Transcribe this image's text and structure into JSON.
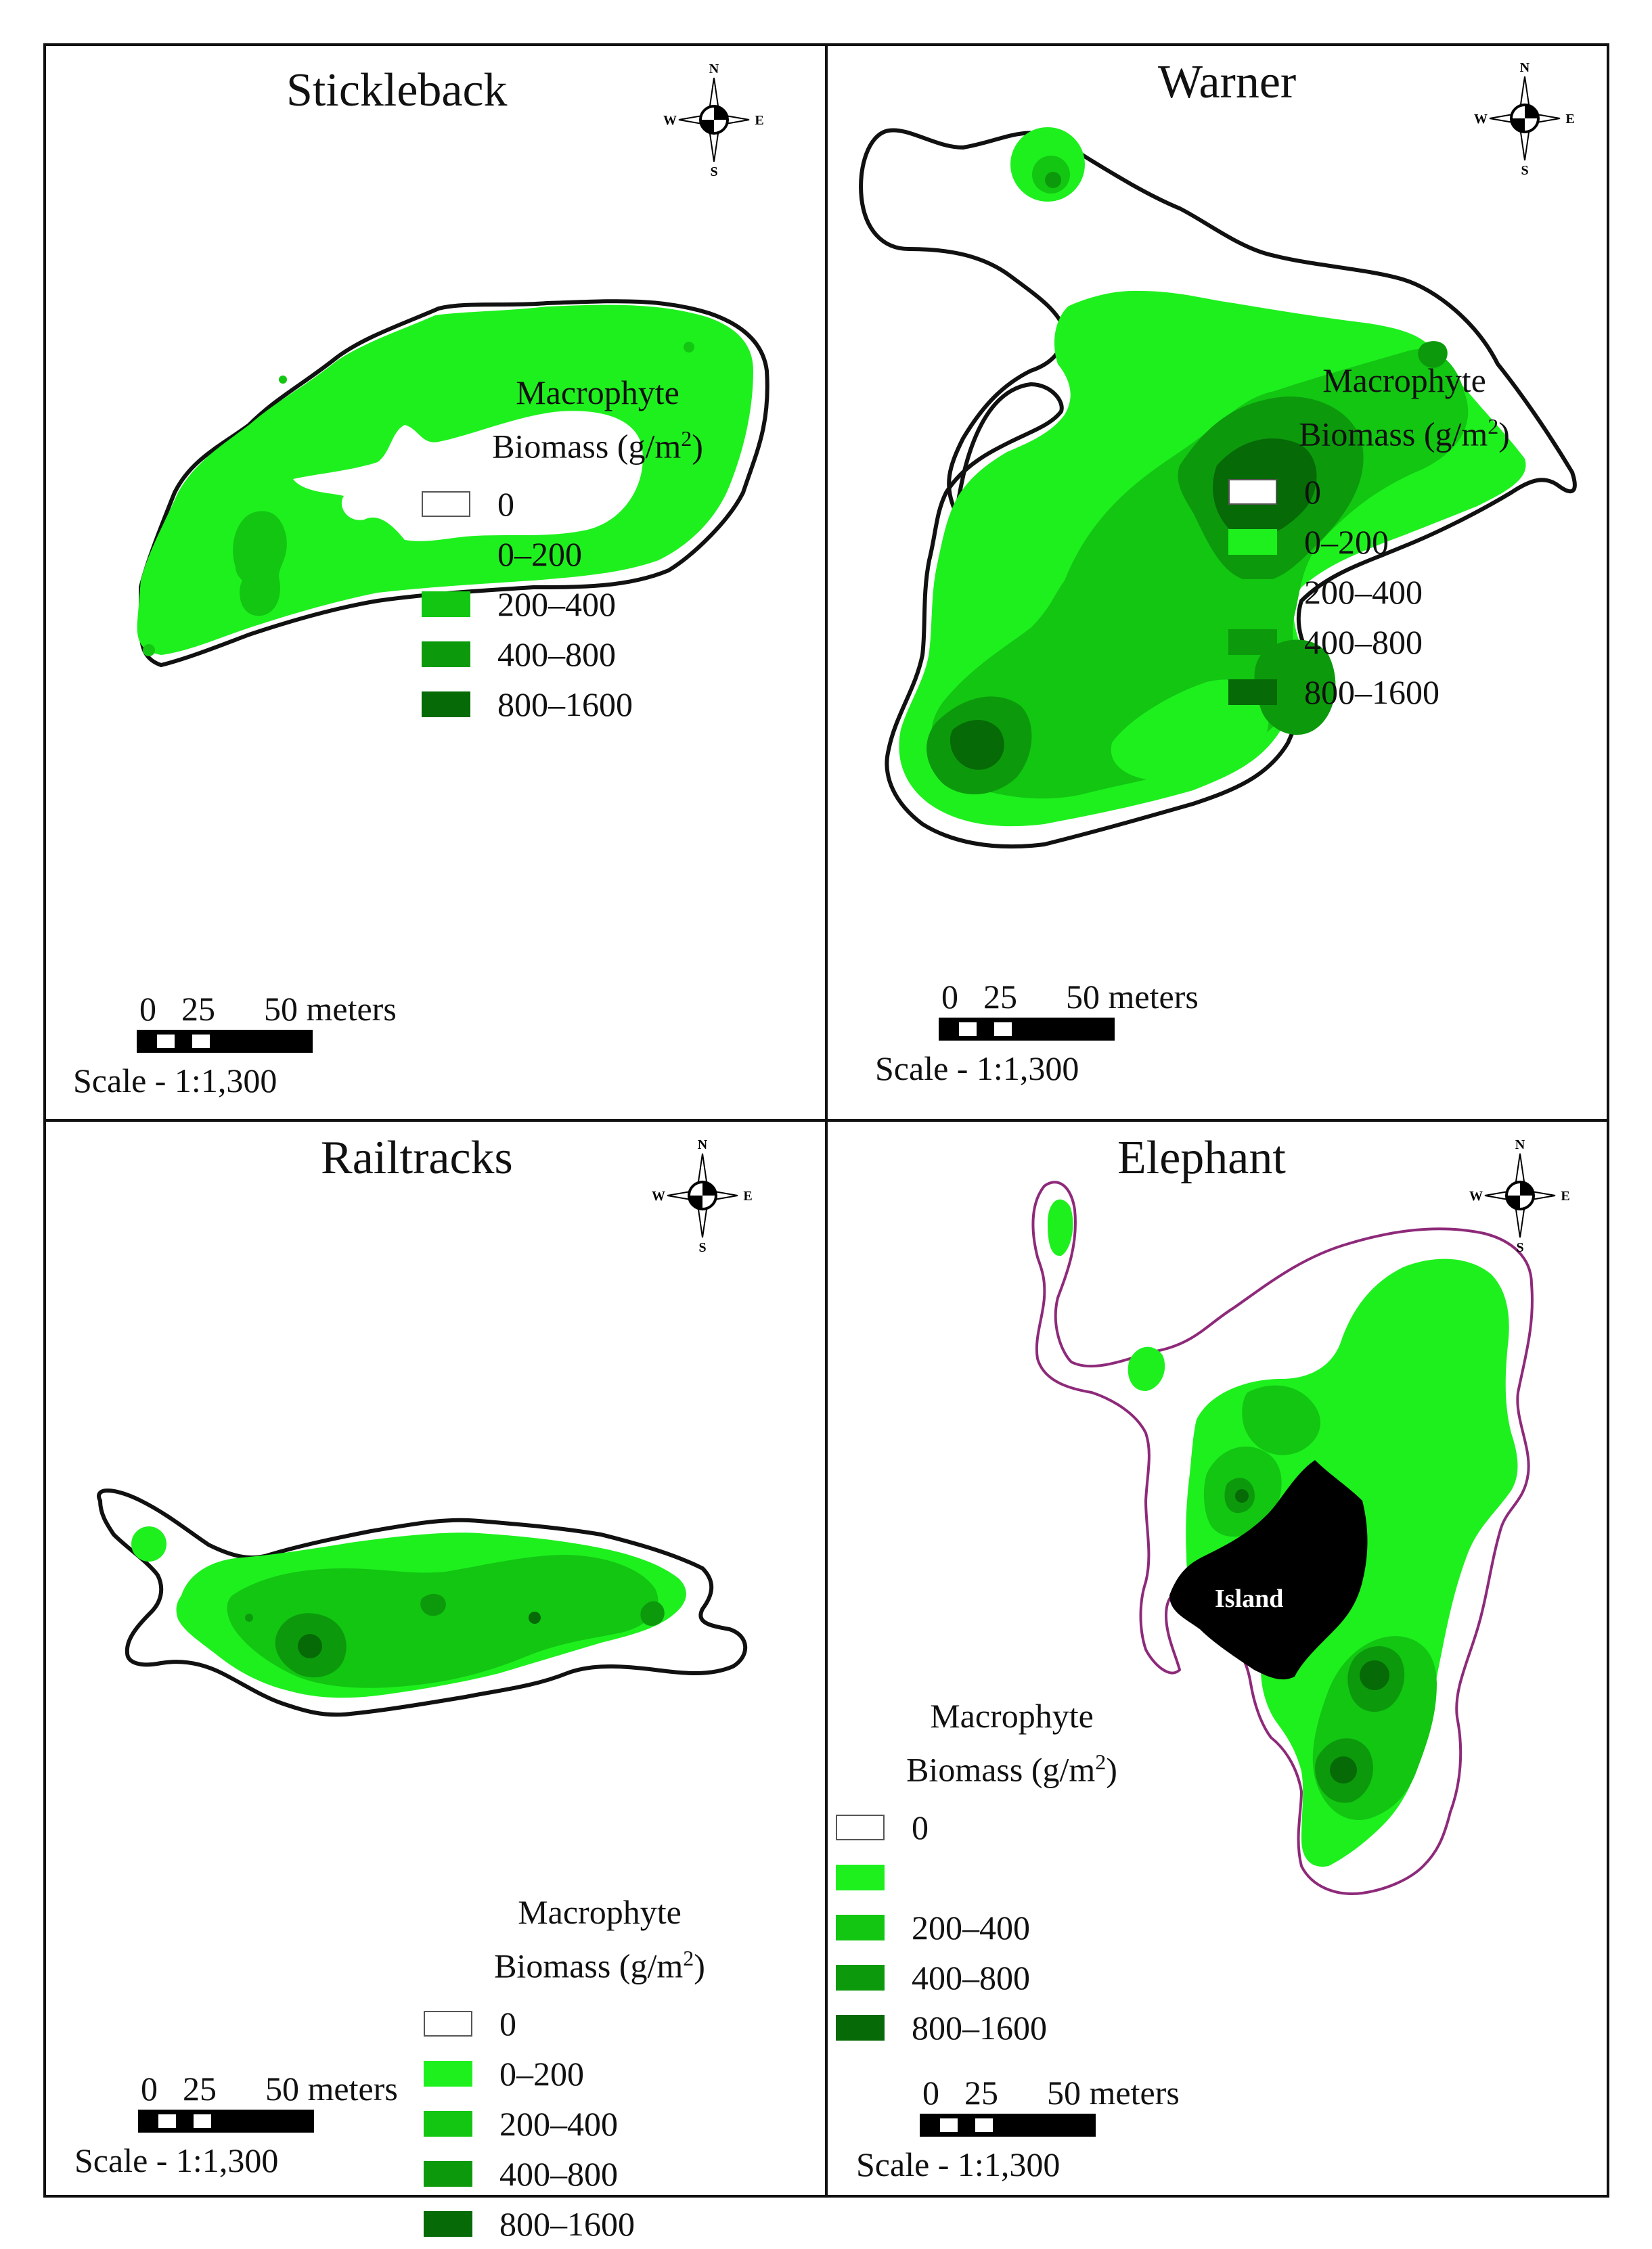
{
  "panels": [
    {
      "title": "Stickleback"
    },
    {
      "title": "Warner"
    },
    {
      "title": "Railtracks"
    },
    {
      "title": "Elephant",
      "island_label": "Island"
    }
  ],
  "compass": {
    "n": "N",
    "s": "S",
    "e": "E",
    "w": "W"
  },
  "legend": {
    "title_line1": "Macrophyte",
    "title_line2": "Biomass (g/m",
    "title_sup": "2",
    "title_end": ")",
    "classes": [
      "0",
      "0–200",
      "200–400",
      "400–800",
      "800–1600"
    ],
    "elephant_classes": [
      "0",
      "",
      "200–400",
      "400–800",
      "800–1600"
    ],
    "colors": [
      "#ffffff",
      "#1ef01e",
      "#12c612",
      "#0c9a0c",
      "#066a06"
    ]
  },
  "scale": {
    "n0": "0",
    "n25": "25",
    "n50": "50 meters",
    "text": "Scale - 1:1,300"
  }
}
